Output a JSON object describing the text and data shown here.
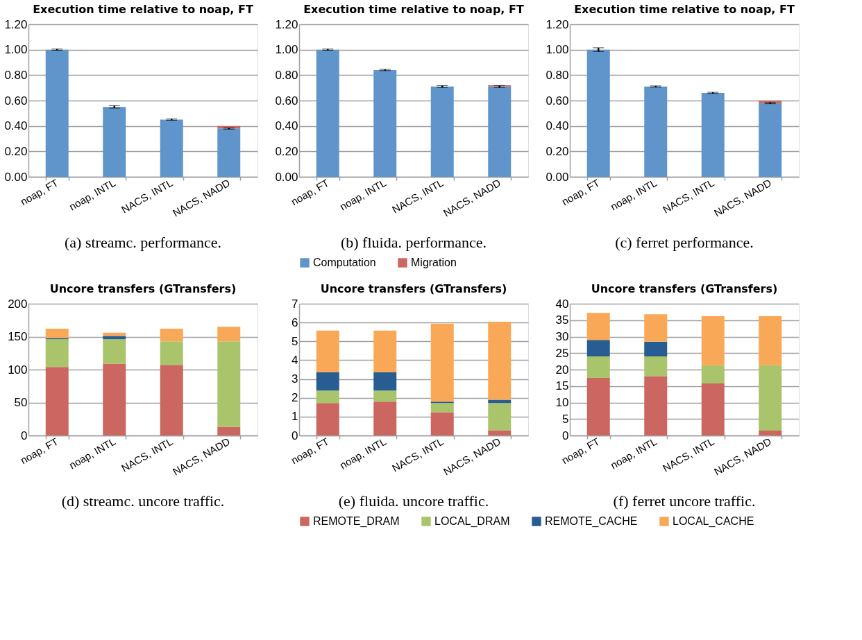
{
  "chart_data": [
    {
      "type": "bar",
      "title": "Execution time relative to noap, FT",
      "categories": [
        "noap, FT",
        "noap, INTL",
        "NACS, INTL",
        "NACS, NADD"
      ],
      "stacked": true,
      "ylim": [
        0,
        1.2
      ],
      "yticks": [
        {
          "value": 0,
          "label": "0.00"
        },
        {
          "value": 0.2,
          "label": "0.20"
        },
        {
          "value": 0.4,
          "label": "0.40"
        },
        {
          "value": 0.6,
          "label": "0.60"
        },
        {
          "value": 0.8,
          "label": "0.80"
        },
        {
          "value": 1,
          "label": "1.00"
        },
        {
          "value": 1.2,
          "label": "1.20"
        }
      ],
      "grid": "y",
      "annotations": [
        "(a) streamc. performance."
      ],
      "series": [
        {
          "color": "#5f95cb",
          "values": [
            1.0,
            0.55,
            0.45,
            0.38
          ],
          "errors": [
            0.005,
            0.01,
            0.005,
            0.005
          ]
        },
        {
          "color": "#cc6660",
          "values": [
            null,
            null,
            null,
            0.02
          ]
        }
      ]
    },
    {
      "type": "bar",
      "title": "Execution time relative to noap, FT",
      "categories": [
        "noap, FT",
        "noap, INTL",
        "NACS, INTL",
        "NACS, NADD"
      ],
      "stacked": true,
      "ylim": [
        0,
        1.2
      ],
      "yticks": [
        {
          "value": 0,
          "label": "0.00"
        },
        {
          "value": 0.2,
          "label": "0.20"
        },
        {
          "value": 0.4,
          "label": "0.40"
        },
        {
          "value": 0.6,
          "label": "0.60"
        },
        {
          "value": 0.8,
          "label": "0.80"
        },
        {
          "value": 1,
          "label": "1.00"
        },
        {
          "value": 1.2,
          "label": "1.20"
        }
      ],
      "grid": "y",
      "legend": "bottom",
      "annotations": [
        "(b) fluida. performance."
      ],
      "series": [
        {
          "name": "Computation",
          "color": "#5f95cb",
          "values": [
            1.0,
            0.84,
            0.71,
            0.71
          ],
          "errors": [
            0.005,
            0.005,
            0.008,
            0.008
          ]
        },
        {
          "name": "Migration",
          "color": "#cc6660",
          "values": [
            null,
            null,
            null,
            0.01
          ]
        }
      ]
    },
    {
      "type": "bar",
      "title": "Execution time relative to noap, FT",
      "categories": [
        "noap, FT",
        "noap, INTL",
        "NACS, INTL",
        "NACS, NADD"
      ],
      "stacked": true,
      "ylim": [
        0,
        1.2
      ],
      "yticks": [
        {
          "value": 0,
          "label": "0.00"
        },
        {
          "value": 0.2,
          "label": "0.20"
        },
        {
          "value": 0.4,
          "label": "0.40"
        },
        {
          "value": 0.6,
          "label": "0.60"
        },
        {
          "value": 0.8,
          "label": "0.80"
        },
        {
          "value": 1,
          "label": "1.00"
        },
        {
          "value": 1.2,
          "label": "1.20"
        }
      ],
      "grid": "y",
      "annotations": [
        "(c) ferret performance."
      ],
      "series": [
        {
          "color": "#5f95cb",
          "values": [
            1.0,
            0.71,
            0.66,
            0.58
          ],
          "errors": [
            0.015,
            0.005,
            0.005,
            0.005
          ]
        },
        {
          "color": "#cc6660",
          "values": [
            null,
            null,
            null,
            0.02
          ]
        }
      ]
    },
    {
      "type": "bar",
      "title": "Uncore transfers (GTransfers)",
      "categories": [
        "noap, FT",
        "noap, INTL",
        "NACS, INTL",
        "NACS, NADD"
      ],
      "stacked": true,
      "ylim": [
        0,
        200
      ],
      "yticks": [
        0,
        50,
        100,
        150,
        200
      ],
      "grid": "y",
      "annotations": [
        "(d) streamc. uncore traffic."
      ],
      "series": [
        {
          "color": "#cc6660",
          "values": [
            104,
            109,
            107,
            13
          ]
        },
        {
          "color": "#a9c46a",
          "values": [
            42,
            37,
            36,
            130
          ]
        },
        {
          "color": "#275d90",
          "values": [
            2,
            5,
            0,
            0
          ]
        },
        {
          "color": "#f9a857",
          "values": [
            14,
            5,
            19,
            22
          ]
        }
      ]
    },
    {
      "type": "bar",
      "title": "Uncore transfers (GTransfers)",
      "categories": [
        "noap, FT",
        "noap, INTL",
        "NACS, INTL",
        "NACS, NADD"
      ],
      "stacked": true,
      "ylim": [
        0,
        7
      ],
      "yticks": [
        0,
        1,
        2,
        3,
        4,
        5,
        6,
        7
      ],
      "grid": "y",
      "legend": "bottom",
      "annotations": [
        "(e) fluida. uncore traffic."
      ],
      "series": [
        {
          "name": "REMOTE_DRAM",
          "color": "#cc6660",
          "values": [
            1.72,
            1.8,
            1.23,
            0.28
          ]
        },
        {
          "name": "LOCAL_DRAM",
          "color": "#a9c46a",
          "values": [
            0.67,
            0.59,
            0.49,
            1.44
          ]
        },
        {
          "name": "REMOTE_CACHE",
          "color": "#275d90",
          "values": [
            0.96,
            0.96,
            0.08,
            0.18
          ]
        },
        {
          "name": "LOCAL_CACHE",
          "color": "#f9a857",
          "values": [
            2.22,
            2.22,
            4.14,
            4.14
          ]
        }
      ]
    },
    {
      "type": "bar",
      "title": "Uncore transfers (GTransfers)",
      "categories": [
        "noap, FT",
        "noap, INTL",
        "NACS, INTL",
        "NACS, NADD"
      ],
      "stacked": true,
      "ylim": [
        0,
        40
      ],
      "yticks": [
        0,
        5,
        10,
        15,
        20,
        25,
        30,
        35,
        40
      ],
      "grid": "y",
      "annotations": [
        "(f) ferret uncore traffic."
      ],
      "series": [
        {
          "color": "#cc6660",
          "values": [
            17.5,
            18,
            15.8,
            1.5
          ]
        },
        {
          "color": "#a9c46a",
          "values": [
            6.5,
            6,
            5.5,
            19.8
          ]
        },
        {
          "color": "#275d90",
          "values": [
            5,
            4.5,
            0,
            0
          ]
        },
        {
          "color": "#f9a857",
          "values": [
            8.2,
            8.3,
            14.9,
            14.9
          ]
        }
      ]
    }
  ]
}
